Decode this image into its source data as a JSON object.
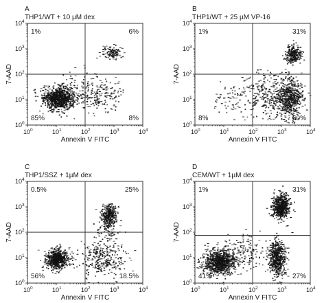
{
  "chart_data": [
    {
      "type": "scatter",
      "panel_label": "A",
      "title": "THP1/WT + 10 µM dex",
      "xlabel": "Annexin V FITC",
      "ylabel": "7-AAD",
      "x_scale": "log",
      "y_scale": "log",
      "xlim": [
        1,
        10000
      ],
      "ylim": [
        1,
        10000
      ],
      "gate": {
        "x": 100,
        "y": 100
      },
      "quadrant_labels": {
        "upper_left": "1%",
        "upper_right": "6%",
        "lower_left": "85%",
        "lower_right": "8%"
      },
      "clusters": [
        {
          "center": [
            12,
            12
          ],
          "spread": [
            0.28,
            0.22
          ],
          "count": 900,
          "density": 0.55
        },
        {
          "center": [
            900,
            700
          ],
          "spread": [
            0.18,
            0.16
          ],
          "count": 110,
          "density": 0.5
        },
        {
          "center": [
            350,
            15
          ],
          "spread": [
            0.35,
            0.3
          ],
          "count": 160,
          "density": 0.35
        },
        {
          "center": [
            60,
            25
          ],
          "spread": [
            0.3,
            0.35
          ],
          "count": 90,
          "density": 0.3
        }
      ]
    },
    {
      "type": "scatter",
      "panel_label": "B",
      "title": "THP1/WT + 25 µM VP-16",
      "xlabel": "Annexin V FITC",
      "ylabel": "7-AAD",
      "x_scale": "log",
      "y_scale": "log",
      "xlim": [
        1,
        10000
      ],
      "ylim": [
        1,
        10000
      ],
      "gate": {
        "x": 100,
        "y": 100
      },
      "quadrant_labels": {
        "upper_left": "1%",
        "upper_right": "31%",
        "lower_left": "8%",
        "lower_right": "60%"
      },
      "clusters": [
        {
          "center": [
            2500,
            600
          ],
          "spread": [
            0.14,
            0.18
          ],
          "count": 260,
          "density": 0.55
        },
        {
          "center": [
            1800,
            12
          ],
          "spread": [
            0.22,
            0.4
          ],
          "count": 600,
          "density": 0.55
        },
        {
          "center": [
            250,
            15
          ],
          "spread": [
            0.45,
            0.45
          ],
          "count": 260,
          "density": 0.35
        },
        {
          "center": [
            15,
            10
          ],
          "spread": [
            0.35,
            0.35
          ],
          "count": 60,
          "density": 0.3
        }
      ]
    },
    {
      "type": "scatter",
      "panel_label": "C",
      "title": "THP1/SSZ + 1µM dex",
      "xlabel": "Annexin V FITC",
      "ylabel": "7-AAD",
      "x_scale": "log",
      "y_scale": "log",
      "xlim": [
        1,
        10000
      ],
      "ylim": [
        1,
        10000
      ],
      "gate": {
        "x": 100,
        "y": 100
      },
      "quadrant_labels": {
        "upper_left": "0.5%",
        "upper_right": "25%",
        "lower_left": "56%",
        "lower_right": "18.5%"
      },
      "clusters": [
        {
          "center": [
            10,
            9
          ],
          "spread": [
            0.2,
            0.2
          ],
          "count": 650,
          "density": 0.55
        },
        {
          "center": [
            650,
            500
          ],
          "spread": [
            0.14,
            0.2
          ],
          "count": 280,
          "density": 0.55
        },
        {
          "center": [
            400,
            10
          ],
          "spread": [
            0.4,
            0.35
          ],
          "count": 300,
          "density": 0.4
        },
        {
          "center": [
            600,
            150
          ],
          "spread": [
            0.2,
            0.35
          ],
          "count": 90,
          "density": 0.35
        }
      ]
    },
    {
      "type": "scatter",
      "panel_label": "D",
      "title": "CEM/WT + 1µM dex",
      "xlabel": "Annexin V FITC",
      "ylabel": "7-AAD",
      "x_scale": "log",
      "y_scale": "log",
      "xlim": [
        1,
        10000
      ],
      "ylim": [
        1,
        10000
      ],
      "gate": {
        "x": 100,
        "y": 75
      },
      "quadrant_labels": {
        "upper_left": "1%",
        "upper_right": "31%",
        "lower_left": "41%",
        "lower_right": "27%"
      },
      "clusters": [
        {
          "center": [
            7,
            7
          ],
          "spread": [
            0.28,
            0.25
          ],
          "count": 900,
          "density": 0.6
        },
        {
          "center": [
            900,
            1000
          ],
          "spread": [
            0.15,
            0.25
          ],
          "count": 600,
          "density": 0.6
        },
        {
          "center": [
            700,
            10
          ],
          "spread": [
            0.15,
            0.35
          ],
          "count": 550,
          "density": 0.55
        },
        {
          "center": [
            60,
            20
          ],
          "spread": [
            0.35,
            0.35
          ],
          "count": 120,
          "density": 0.3
        }
      ]
    }
  ]
}
